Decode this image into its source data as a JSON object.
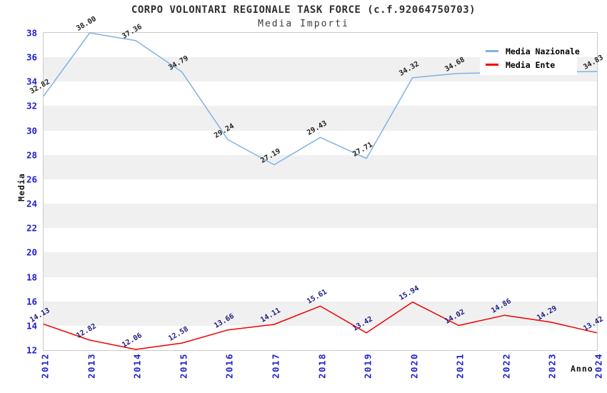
{
  "title": "CORPO VOLONTARI REGIONALE TASK FORCE (c.f.92064750703)",
  "subtitle": "Media Importi",
  "axes": {
    "y_label": "Media",
    "x_label": "Anno"
  },
  "legend": {
    "items": [
      {
        "label": "Media Nazionale",
        "color": "#82b1e3"
      },
      {
        "label": "Media Ente",
        "color": "#ee0000"
      }
    ],
    "position": "top-right"
  },
  "colors": {
    "tick_label": "#2020cf",
    "band_gray": "#f0f0f0",
    "plot_border": "#c9c9c9",
    "nazionale_line": "#82b1e3",
    "ente_line": "#ee0000",
    "nazionale_value_label": "#222222",
    "ente_value_label": "#1c1c85"
  },
  "chart_data": {
    "type": "line",
    "title": "CORPO VOLONTARI REGIONALE TASK FORCE (c.f.92064750703)",
    "subtitle": "Media Importi",
    "xlabel": "Anno",
    "ylabel": "Media",
    "categories": [
      "2012",
      "2013",
      "2014",
      "2015",
      "2016",
      "2017",
      "2018",
      "2019",
      "2020",
      "2021",
      "2022",
      "2023",
      "2024"
    ],
    "ylim": [
      12,
      38
    ],
    "y_ticks": [
      38,
      36,
      34,
      32,
      30,
      28,
      26,
      24,
      22,
      20,
      18,
      16,
      14,
      12
    ],
    "grid": "horizontal-alternating-bands",
    "legend_position": "top-right-inside",
    "series": [
      {
        "name": "Media Nazionale",
        "color": "#82b1e3",
        "label_color": "#222222",
        "values": [
          32.82,
          38.0,
          37.36,
          34.79,
          29.24,
          27.19,
          29.43,
          27.71,
          34.32,
          34.68,
          34.75,
          34.8,
          34.83
        ],
        "labels": [
          "32.82",
          "38.00",
          "37.36",
          "34.79",
          "29.24",
          "27.19",
          "29.43",
          "27.71",
          "34.32",
          "34.68",
          null,
          null,
          "34.83"
        ]
      },
      {
        "name": "Media Ente",
        "color": "#ee0000",
        "label_color": "#1c1c85",
        "values": [
          14.13,
          12.82,
          12.06,
          12.58,
          13.66,
          14.11,
          15.61,
          13.42,
          15.94,
          14.02,
          14.86,
          14.29,
          13.42
        ],
        "labels": [
          "14.13",
          "12.82",
          "12.06",
          "12.58",
          "13.66",
          "14.11",
          "15.61",
          "13.42",
          "15.94",
          "14.02",
          "14.86",
          "14.29",
          "13.42"
        ]
      }
    ]
  }
}
